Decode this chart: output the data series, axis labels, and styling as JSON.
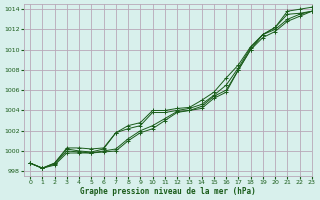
{
  "title": "Graphe pression niveau de la mer (hPa)",
  "bg_color": "#d8f0ec",
  "grid_color": "#b8a8b8",
  "line_color": "#1a5c1a",
  "xlim": [
    -0.5,
    23
  ],
  "ylim": [
    997.5,
    1014.5
  ],
  "yticks": [
    998,
    1000,
    1002,
    1004,
    1006,
    1008,
    1010,
    1012,
    1014
  ],
  "xticks": [
    0,
    1,
    2,
    3,
    4,
    5,
    6,
    7,
    8,
    9,
    10,
    11,
    12,
    13,
    14,
    15,
    16,
    17,
    18,
    19,
    20,
    21,
    22,
    23
  ],
  "series": [
    [
      998.8,
      998.3,
      998.6,
      999.8,
      999.8,
      999.8,
      999.9,
      1000.0,
      1001.0,
      1001.8,
      1002.2,
      1003.0,
      1003.8,
      1004.0,
      1004.2,
      1005.2,
      1005.8,
      1008.0,
      1010.0,
      1011.2,
      1011.8,
      1012.8,
      1013.3,
      1013.8
    ],
    [
      998.8,
      998.3,
      998.7,
      1000.0,
      999.9,
      999.8,
      1000.0,
      1000.2,
      1001.2,
      1002.0,
      1002.5,
      1003.2,
      1003.9,
      1004.0,
      1004.4,
      1005.4,
      1006.0,
      1008.0,
      1010.0,
      1011.5,
      1012.0,
      1013.0,
      1013.5,
      1013.8
    ],
    [
      998.8,
      998.3,
      998.8,
      1000.2,
      1000.0,
      999.9,
      1000.2,
      1001.8,
      1002.2,
      1002.5,
      1003.8,
      1003.8,
      1004.0,
      1004.2,
      1004.6,
      1005.5,
      1006.5,
      1008.2,
      1010.2,
      1011.5,
      1012.2,
      1013.5,
      1013.6,
      1013.8
    ],
    [
      998.8,
      998.3,
      998.8,
      1000.3,
      1000.3,
      1000.2,
      1000.3,
      1001.8,
      1002.5,
      1002.8,
      1004.0,
      1004.0,
      1004.2,
      1004.3,
      1005.0,
      1005.8,
      1007.2,
      1008.5,
      1010.3,
      1011.5,
      1012.2,
      1013.8,
      1014.0,
      1014.2
    ]
  ]
}
